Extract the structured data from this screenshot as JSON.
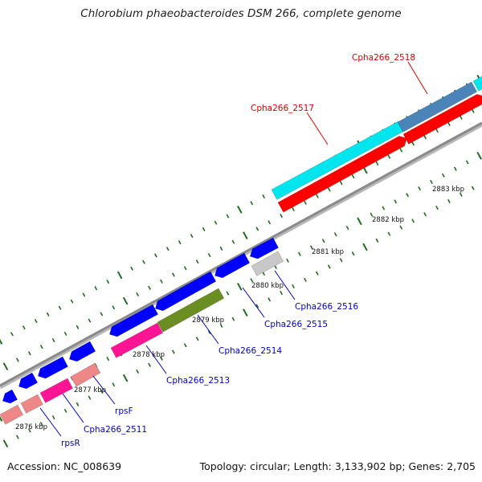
{
  "title": "Chlorobium phaeobacteroides DSM 266, complete genome",
  "footer": {
    "accession": "Accession: NC_008639",
    "summary": "Topology: circular; Length: 3,133,902 bp; Genes: 2,705"
  },
  "colors": {
    "backbone": "#8a8a8a",
    "tick": "#1e6e1e",
    "label_blue": "#0000cc",
    "label_red": "#dd0000",
    "scale_text": "#111111"
  },
  "scale_labels": [
    {
      "text": "2876 kbp",
      "kbp": 2876
    },
    {
      "text": "2877 kbp",
      "kbp": 2877
    },
    {
      "text": "2878 kbp",
      "kbp": 2878
    },
    {
      "text": "2879 kbp",
      "kbp": 2879
    },
    {
      "text": "2880 kbp",
      "kbp": 2880
    },
    {
      "text": "2881 kbp",
      "kbp": 2881
    },
    {
      "text": "2882 kbp",
      "kbp": 2882
    },
    {
      "text": "2883 kbp",
      "kbp": 2883
    }
  ],
  "genes": [
    {
      "label": "rpsR",
      "color": "#0000cc",
      "strand": "minus"
    },
    {
      "label": "Cpha266_2511",
      "color": "#0000cc",
      "strand": "minus"
    },
    {
      "label": "rpsF",
      "color": "#0000cc",
      "strand": "minus"
    },
    {
      "label": "Cpha266_2513",
      "color": "#0000cc",
      "strand": "minus"
    },
    {
      "label": "Cpha266_2514",
      "color": "#0000cc",
      "strand": "minus"
    },
    {
      "label": "Cpha266_2515",
      "color": "#0000cc",
      "strand": "minus"
    },
    {
      "label": "Cpha266_2516",
      "color": "#0000cc",
      "strand": "minus"
    },
    {
      "label": "Cpha266_2517",
      "color": "#dd0000",
      "strand": "plus"
    },
    {
      "label": "Cpha266_2518",
      "color": "#dd0000",
      "strand": "plus"
    }
  ]
}
